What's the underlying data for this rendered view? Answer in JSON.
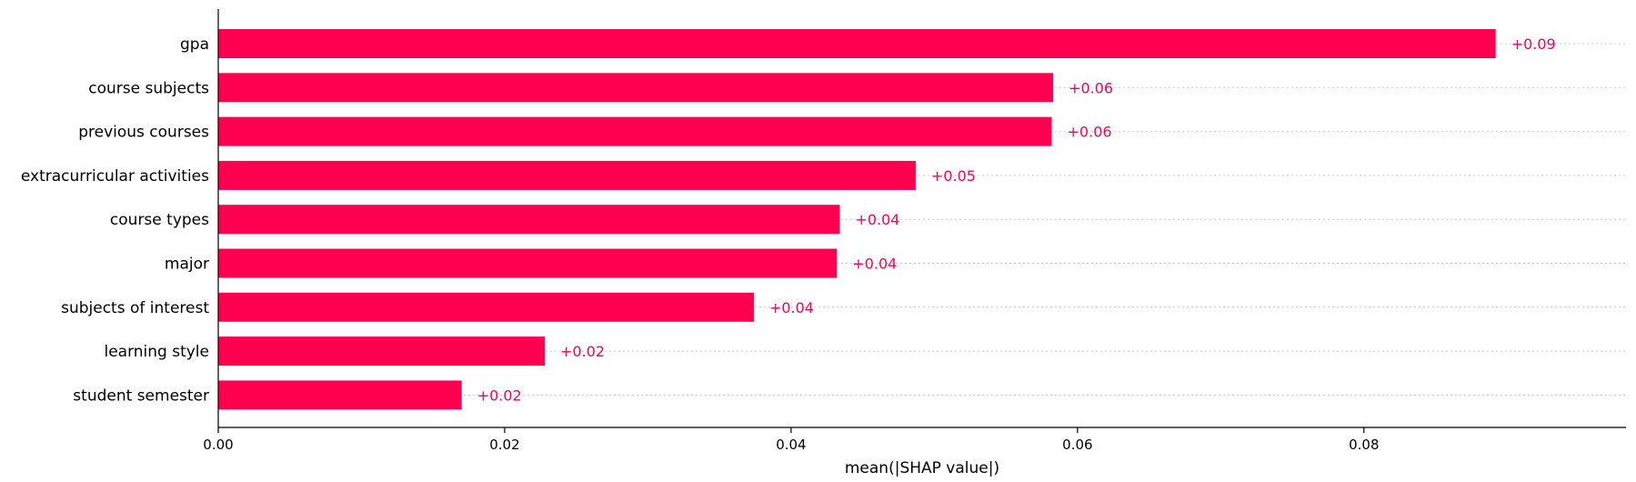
{
  "chart_data": {
    "type": "bar",
    "orientation": "horizontal",
    "categories": [
      "gpa",
      "course subjects",
      "previous courses",
      "extracurricular activities",
      "course types",
      "major",
      "subjects of interest",
      "learning style",
      "student semester"
    ],
    "values": [
      0.0892,
      0.0583,
      0.0582,
      0.0487,
      0.0434,
      0.0432,
      0.0374,
      0.0228,
      0.017
    ],
    "value_labels": [
      "+0.09",
      "+0.06",
      "+0.06",
      "+0.05",
      "+0.04",
      "+0.04",
      "+0.04",
      "+0.02",
      "+0.02"
    ],
    "xlabel": "mean(|SHAP value|)",
    "ylabel": "",
    "title": "",
    "xlim": [
      0,
      0.0983
    ],
    "xticks": [
      0,
      0.02,
      0.04,
      0.06,
      0.08
    ],
    "xtick_labels": [
      "0.00",
      "0.02",
      "0.04",
      "0.06",
      "0.08"
    ],
    "grid": false,
    "colors": {
      "bar": "#ff0051",
      "value_label": "#ff0051",
      "guide": "#cccccc"
    }
  }
}
